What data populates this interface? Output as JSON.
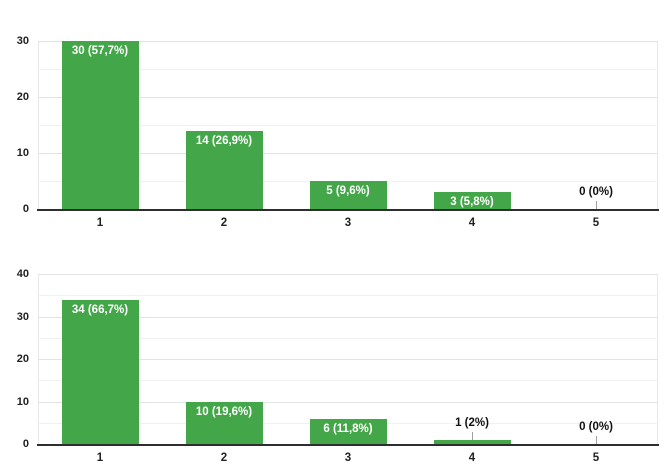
{
  "colors": {
    "bar": "#43a648",
    "grid_major": "#e3e3e3",
    "grid_minor": "#f1f1f1",
    "axis_line": "#2e2e2e",
    "tick_label": "#212121",
    "inside_label": "#ffffff",
    "outside_label": "#111111",
    "leader_line": "#9e9e9e",
    "background": "#ffffff"
  },
  "chart_data": [
    {
      "type": "bar",
      "title": "",
      "xlabel": "",
      "ylabel": "",
      "categories": [
        "1",
        "2",
        "3",
        "4",
        "5"
      ],
      "values": [
        30,
        14,
        5,
        3,
        0
      ],
      "bar_labels": [
        "30 (57,7%)",
        "14 (26,9%)",
        "5 (9,6%)",
        "3 (5,8%)",
        "0 (0%)"
      ],
      "ylim": [
        0,
        30
      ],
      "yticks": [
        "0",
        "10",
        "20",
        "30"
      ],
      "ytick_values": [
        0,
        10,
        20,
        30
      ],
      "minor_tick_step": 5,
      "grid": true,
      "legend": "none"
    },
    {
      "type": "bar",
      "title": "",
      "xlabel": "",
      "ylabel": "",
      "categories": [
        "1",
        "2",
        "3",
        "4",
        "5"
      ],
      "values": [
        34,
        10,
        6,
        1,
        0
      ],
      "bar_labels": [
        "34 (66,7%)",
        "10 (19,6%)",
        "6 (11,8%)",
        "1 (2%)",
        "0 (0%)"
      ],
      "ylim": [
        0,
        40
      ],
      "yticks": [
        "0",
        "10",
        "20",
        "30",
        "40"
      ],
      "ytick_values": [
        0,
        10,
        20,
        30,
        40
      ],
      "minor_tick_step": 5,
      "grid": true,
      "legend": "none"
    }
  ]
}
